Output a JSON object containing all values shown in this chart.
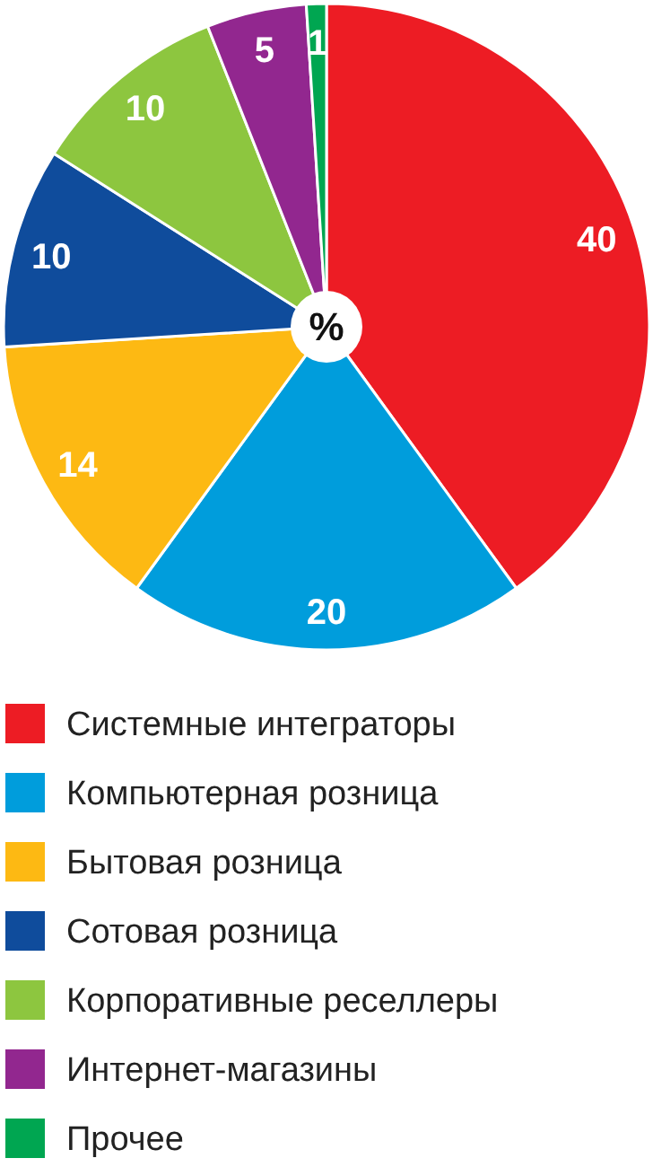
{
  "chart_data": {
    "type": "pie",
    "categories": [
      "Системные интеграторы",
      "Компьютерная розница",
      "Бытовая розница",
      "Сотовая розница",
      "Корпоративные реселлеры",
      "Интернет-магазины",
      "Прочее"
    ],
    "values": [
      40,
      20,
      14,
      10,
      10,
      5,
      1
    ],
    "colors": [
      "#ed1c24",
      "#009ddc",
      "#fdb913",
      "#0f4c9c",
      "#8dc63f",
      "#92278f",
      "#00a651"
    ],
    "data_labels": true,
    "legend": "bottom",
    "annotations": [
      "%"
    ]
  }
}
